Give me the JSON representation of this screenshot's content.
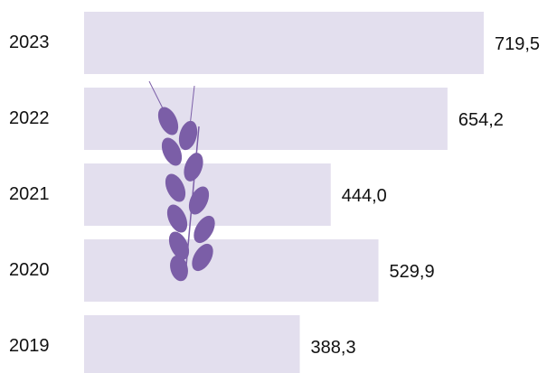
{
  "chart_data": {
    "type": "bar",
    "orientation": "horizontal",
    "categories": [
      "2023",
      "2022",
      "2021",
      "2020",
      "2019"
    ],
    "values": [
      719.5,
      654.2,
      444.0,
      529.9,
      388.3
    ],
    "value_labels": [
      "719,5",
      "654,2",
      "444,0",
      "529,9",
      "388,3"
    ],
    "color": "#e3dfee"
  }
}
